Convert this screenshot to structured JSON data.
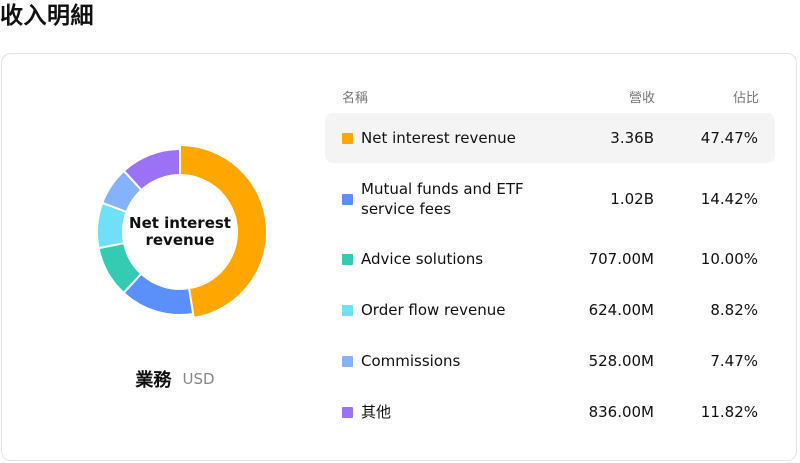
{
  "page": {
    "title": "收入明細"
  },
  "table": {
    "headers": {
      "name": "名稱",
      "revenue": "營收",
      "share": "佔比"
    },
    "rows": [
      {
        "name": "Net interest revenue",
        "revenue": "3.36B",
        "share": "47.47%",
        "color": "#ffa600",
        "highlighted": true
      },
      {
        "name": "Mutual funds and ETF service fees",
        "revenue": "1.02B",
        "share": "14.42%",
        "color": "#5b8ff9"
      },
      {
        "name": "Advice solutions",
        "revenue": "707.00M",
        "share": "10.00%",
        "color": "#33ccb3"
      },
      {
        "name": "Order flow revenue",
        "revenue": "624.00M",
        "share": "8.82%",
        "color": "#6fe0f5"
      },
      {
        "name": "Commissions",
        "revenue": "528.00M",
        "share": "7.47%",
        "color": "#85b3fb"
      },
      {
        "name": "其他",
        "revenue": "836.00M",
        "share": "11.82%",
        "color": "#9b72f5"
      }
    ]
  },
  "chart_data": {
    "type": "pie",
    "donut": true,
    "center_label": "Net interest revenue",
    "caption": "業務",
    "unit": "USD",
    "categories": [
      "Net interest revenue",
      "Mutual funds and ETF service fees",
      "Advice solutions",
      "Order flow revenue",
      "Commissions",
      "其他"
    ],
    "values": [
      47.47,
      14.42,
      10.0,
      8.82,
      7.47,
      11.82
    ],
    "colors": [
      "#ffa600",
      "#5b8ff9",
      "#33ccb3",
      "#6fe0f5",
      "#85b3fb",
      "#9b72f5"
    ],
    "highlighted_index": 0
  }
}
